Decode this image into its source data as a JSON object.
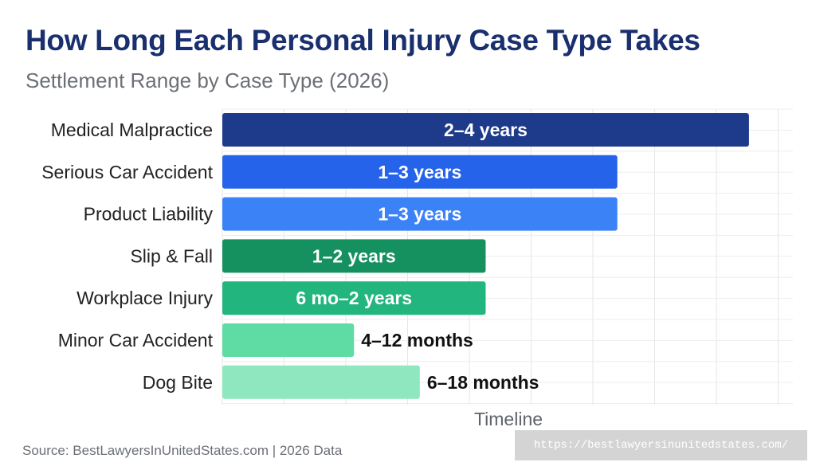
{
  "chart_data": {
    "type": "bar",
    "orientation": "horizontal",
    "title": "How Long Each Personal Injury Case Type Takes",
    "subtitle": "Settlement Range by Case Type (2026)",
    "xlabel": "Timeline",
    "categories": [
      "Medical Malpractice",
      "Serious Car Accident",
      "Product Liability",
      "Slip & Fall",
      "Workplace Injury",
      "Minor Car Accident",
      "Dog Bite"
    ],
    "values": [
      48,
      36,
      36,
      24,
      24,
      12,
      18
    ],
    "value_units": "months",
    "data_labels": [
      "2–4 years",
      "1–3 years",
      "1–3 years",
      "1–2 years",
      "6 mo–2 years",
      "4–12 months",
      "6–18 months"
    ],
    "bar_colors": [
      "#1e3a8a",
      "#2563eb",
      "#3b82f6",
      "#15905f",
      "#22b67e",
      "#5fdca4",
      "#8ee7bf"
    ],
    "xlim": [
      0,
      52
    ],
    "grid": true,
    "legend": "none"
  },
  "source_text": "Source: BestLawyersInUnitedStates.com | 2026 Data",
  "url_badge": "https://bestlawyersinunitedstates.com/"
}
